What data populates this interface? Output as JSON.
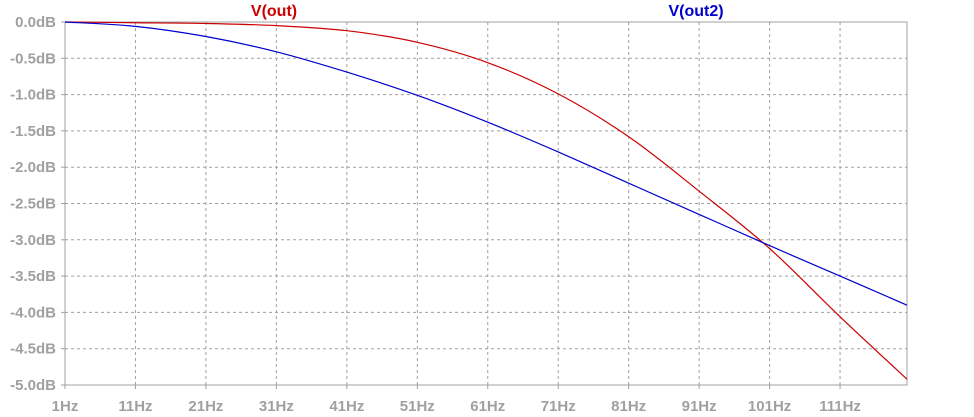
{
  "chart_data": {
    "type": "line",
    "title": "",
    "xlabel": "",
    "ylabel": "",
    "xlim": [
      1,
      120.5
    ],
    "ylim": [
      -5.0,
      0.0
    ],
    "grid": true,
    "x_ticks": [
      1,
      11,
      21,
      31,
      41,
      51,
      61,
      71,
      81,
      91,
      101,
      111
    ],
    "x_tick_labels": [
      "1Hz",
      "11Hz",
      "21Hz",
      "31Hz",
      "41Hz",
      "51Hz",
      "61Hz",
      "71Hz",
      "81Hz",
      "91Hz",
      "101Hz",
      "111Hz"
    ],
    "y_ticks": [
      0.0,
      -0.5,
      -1.0,
      -1.5,
      -2.0,
      -2.5,
      -3.0,
      -3.5,
      -4.0,
      -4.5,
      -5.0
    ],
    "y_tick_labels": [
      "0.0dB",
      "-0.5dB",
      "-1.0dB",
      "-1.5dB",
      "-2.0dB",
      "-2.5dB",
      "-3.0dB",
      "-3.5dB",
      "-4.0dB",
      "-4.5dB",
      "-5.0dB"
    ],
    "series": [
      {
        "name": "V(out)",
        "color": "#cc0000",
        "x": [
          1,
          11,
          21,
          31,
          41,
          51,
          61,
          71,
          81,
          91,
          101,
          111,
          120.5
        ],
        "y": [
          0.0,
          -0.01,
          -0.02,
          -0.05,
          -0.12,
          -0.28,
          -0.56,
          -0.99,
          -1.58,
          -2.33,
          -3.12,
          -4.06,
          -4.92
        ]
      },
      {
        "name": "V(out2)",
        "color": "#0000cc",
        "x": [
          1,
          11,
          21,
          31,
          41,
          51,
          61,
          71,
          81,
          91,
          101,
          111,
          120.5
        ],
        "y": [
          0.0,
          -0.06,
          -0.2,
          -0.41,
          -0.69,
          -1.01,
          -1.38,
          -1.79,
          -2.22,
          -2.65,
          -3.08,
          -3.5,
          -3.9
        ]
      }
    ]
  }
}
